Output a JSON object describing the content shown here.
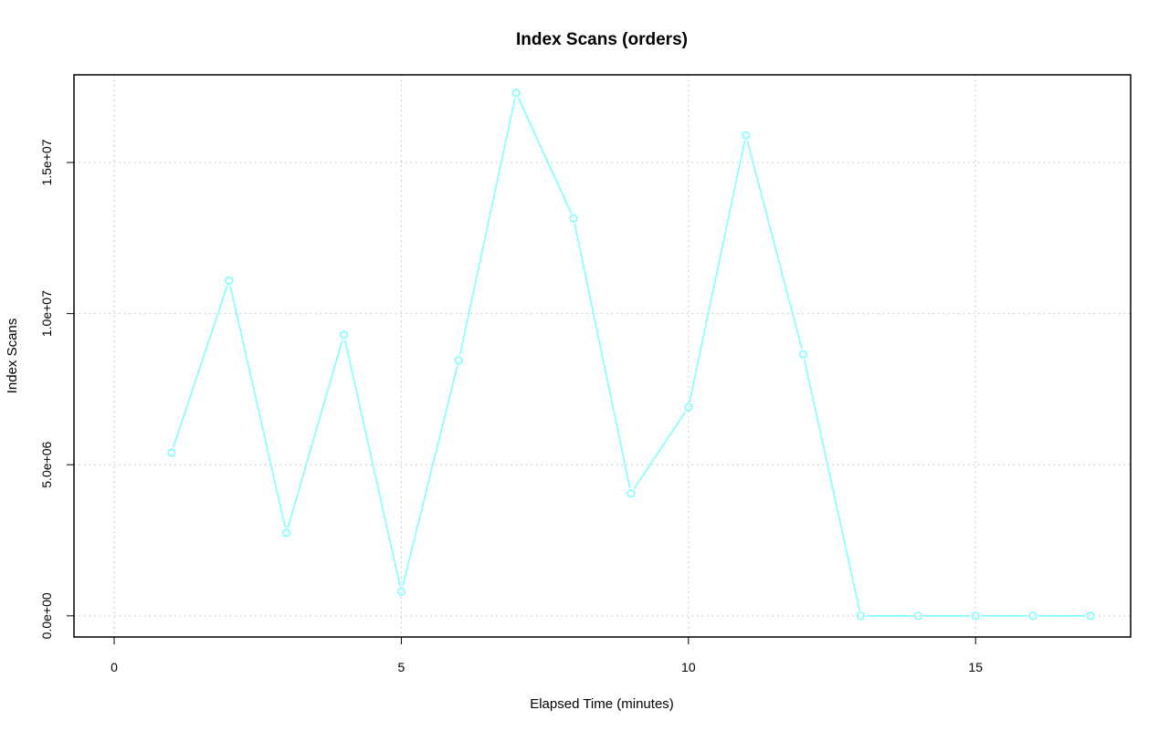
{
  "chart_data": {
    "type": "line",
    "title": "Index Scans (orders)",
    "xlabel": "Elapsed Time (minutes)",
    "ylabel": "Index Scans",
    "xlim": [
      -0.7,
      17.7
    ],
    "ylim": [
      -700000,
      17900000
    ],
    "x_ticks": [
      0,
      5,
      10,
      15
    ],
    "x_tick_labels": [
      "0",
      "5",
      "10",
      "15"
    ],
    "y_ticks": [
      0,
      5000000,
      10000000,
      15000000
    ],
    "y_tick_labels": [
      "0.0e+00",
      "5.0e+06",
      "1.0e+07",
      "1.5e+07"
    ],
    "grid": true,
    "legend": "none",
    "series": [
      {
        "color": "#7fffff",
        "marker": "open-circle",
        "x": [
          1,
          2,
          3,
          4,
          5,
          6,
          7,
          8,
          9,
          10,
          11,
          12,
          13,
          14,
          15,
          16,
          17
        ],
        "y": [
          5400000,
          11100000,
          2750000,
          9300000,
          800000,
          8450000,
          17300000,
          13150000,
          4050000,
          6900000,
          15900000,
          8650000,
          0,
          0,
          0,
          0,
          0
        ]
      }
    ]
  }
}
